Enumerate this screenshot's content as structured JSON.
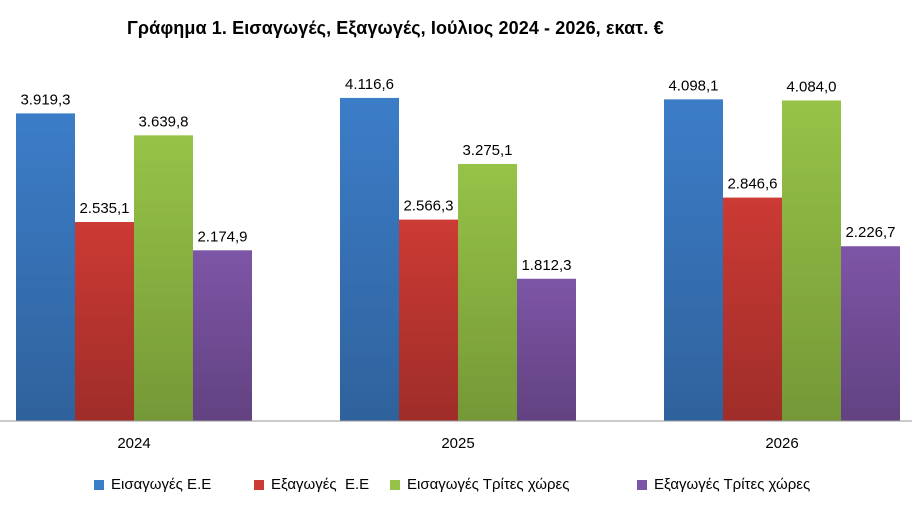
{
  "chart_data": {
    "type": "bar",
    "title": "Γράφημα 1. Εισαγωγές, Εξαγωγές, Ιούλιος 2024 - 2026, εκατ. €",
    "categories": [
      "2024",
      "2025",
      "2026"
    ],
    "series": [
      {
        "name": "Εισαγωγές Ε.Ε",
        "color": "#3C7DC8",
        "values": [
          3919.3,
          4116.6,
          4098.1
        ],
        "labels": [
          "3.919,3",
          "4.116,6",
          "4.098,1"
        ]
      },
      {
        "name": "Εξαγωγές  Ε.Ε",
        "color": "#CC3A34",
        "values": [
          2535.1,
          2566.3,
          2846.6
        ],
        "labels": [
          "2.535,1",
          "2.566,3",
          "2.846,6"
        ]
      },
      {
        "name": "Εισαγωγές Τρίτες χώρες",
        "color": "#96C347",
        "values": [
          3639.8,
          3275.1,
          4084.0
        ],
        "labels": [
          "3.639,8",
          "3.275,1",
          "4.084,0"
        ]
      },
      {
        "name": "Εξαγωγές Τρίτες χώρες",
        "color": "#7D55A6",
        "values": [
          2174.9,
          1812.3,
          2226.7
        ],
        "labels": [
          "2.174,9",
          "1.812,3",
          "2.226,7"
        ]
      }
    ],
    "ylim": [
      0,
      4200
    ],
    "grid": false,
    "legend_position": "bottom",
    "xlabel": "",
    "ylabel": ""
  }
}
